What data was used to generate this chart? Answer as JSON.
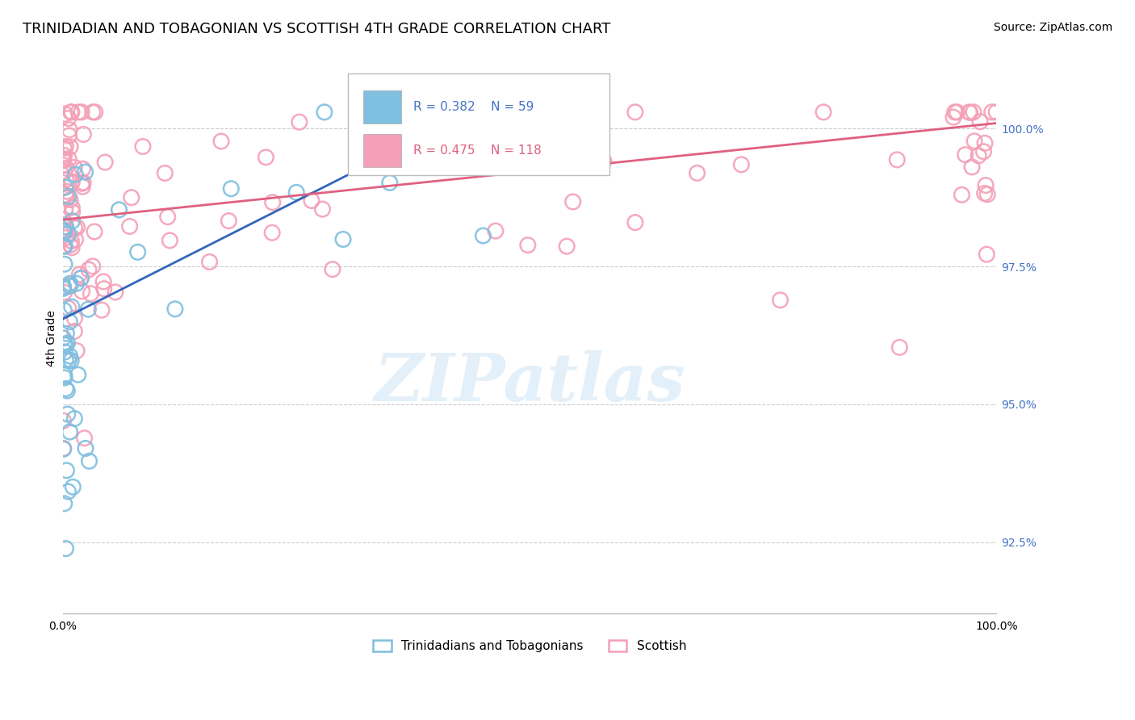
{
  "title": "TRINIDADIAN AND TOBAGONIAN VS SCOTTISH 4TH GRADE CORRELATION CHART",
  "source": "Source: ZipAtlas.com",
  "ylabel": "4th Grade",
  "yaxis_ticks": [
    92.5,
    95.0,
    97.5,
    100.0
  ],
  "yaxis_labels": [
    "92.5%",
    "95.0%",
    "97.5%",
    "100.0%"
  ],
  "xmin": 0.0,
  "xmax": 100.0,
  "ymin": 91.2,
  "ymax": 101.2,
  "legend_blue_label": "Trinidadians and Tobagonians",
  "legend_pink_label": "Scottish",
  "legend_r_blue": "R = 0.382",
  "legend_n_blue": "N = 59",
  "legend_r_pink": "R = 0.475",
  "legend_n_pink": "N = 118",
  "blue_color": "#7fbfdf",
  "pink_color": "#f4a0b8",
  "blue_line_color": "#3366bb",
  "pink_line_color": "#e06080",
  "blue_trend_x0": 0.0,
  "blue_trend_y0": 96.55,
  "blue_trend_x1": 45.0,
  "blue_trend_y1": 100.4,
  "pink_trend_x0": 0.0,
  "pink_trend_y0": 98.35,
  "pink_trend_x1": 100.0,
  "pink_trend_y1": 100.1,
  "watermark": "ZIPatlas",
  "title_fontsize": 13,
  "source_fontsize": 10,
  "legend_fontsize": 11,
  "tick_fontsize": 10,
  "ylabel_fontsize": 10,
  "marker_size": 180
}
